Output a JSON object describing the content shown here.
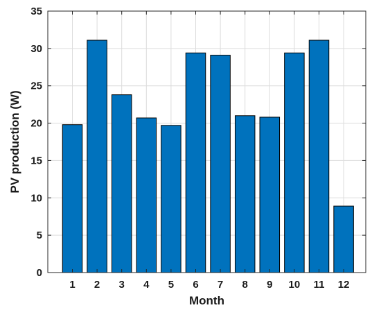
{
  "chart_data": {
    "type": "bar",
    "title": "",
    "xlabel": "Month",
    "ylabel": "PV production (W)",
    "categories": [
      "1",
      "2",
      "3",
      "4",
      "5",
      "6",
      "7",
      "8",
      "9",
      "10",
      "11",
      "12"
    ],
    "values": [
      19.8,
      31.1,
      23.8,
      20.7,
      19.7,
      29.4,
      29.1,
      21.0,
      20.8,
      29.4,
      31.1,
      8.9
    ],
    "ylim": [
      0,
      35
    ],
    "yticks": [
      0,
      5,
      10,
      15,
      20,
      25,
      30,
      35
    ],
    "grid": true,
    "legend": "none",
    "colors": {
      "bar": "#0072BD",
      "bar_edge": "#000000",
      "grid": "#dcdcdc",
      "axis": "#262626"
    }
  }
}
